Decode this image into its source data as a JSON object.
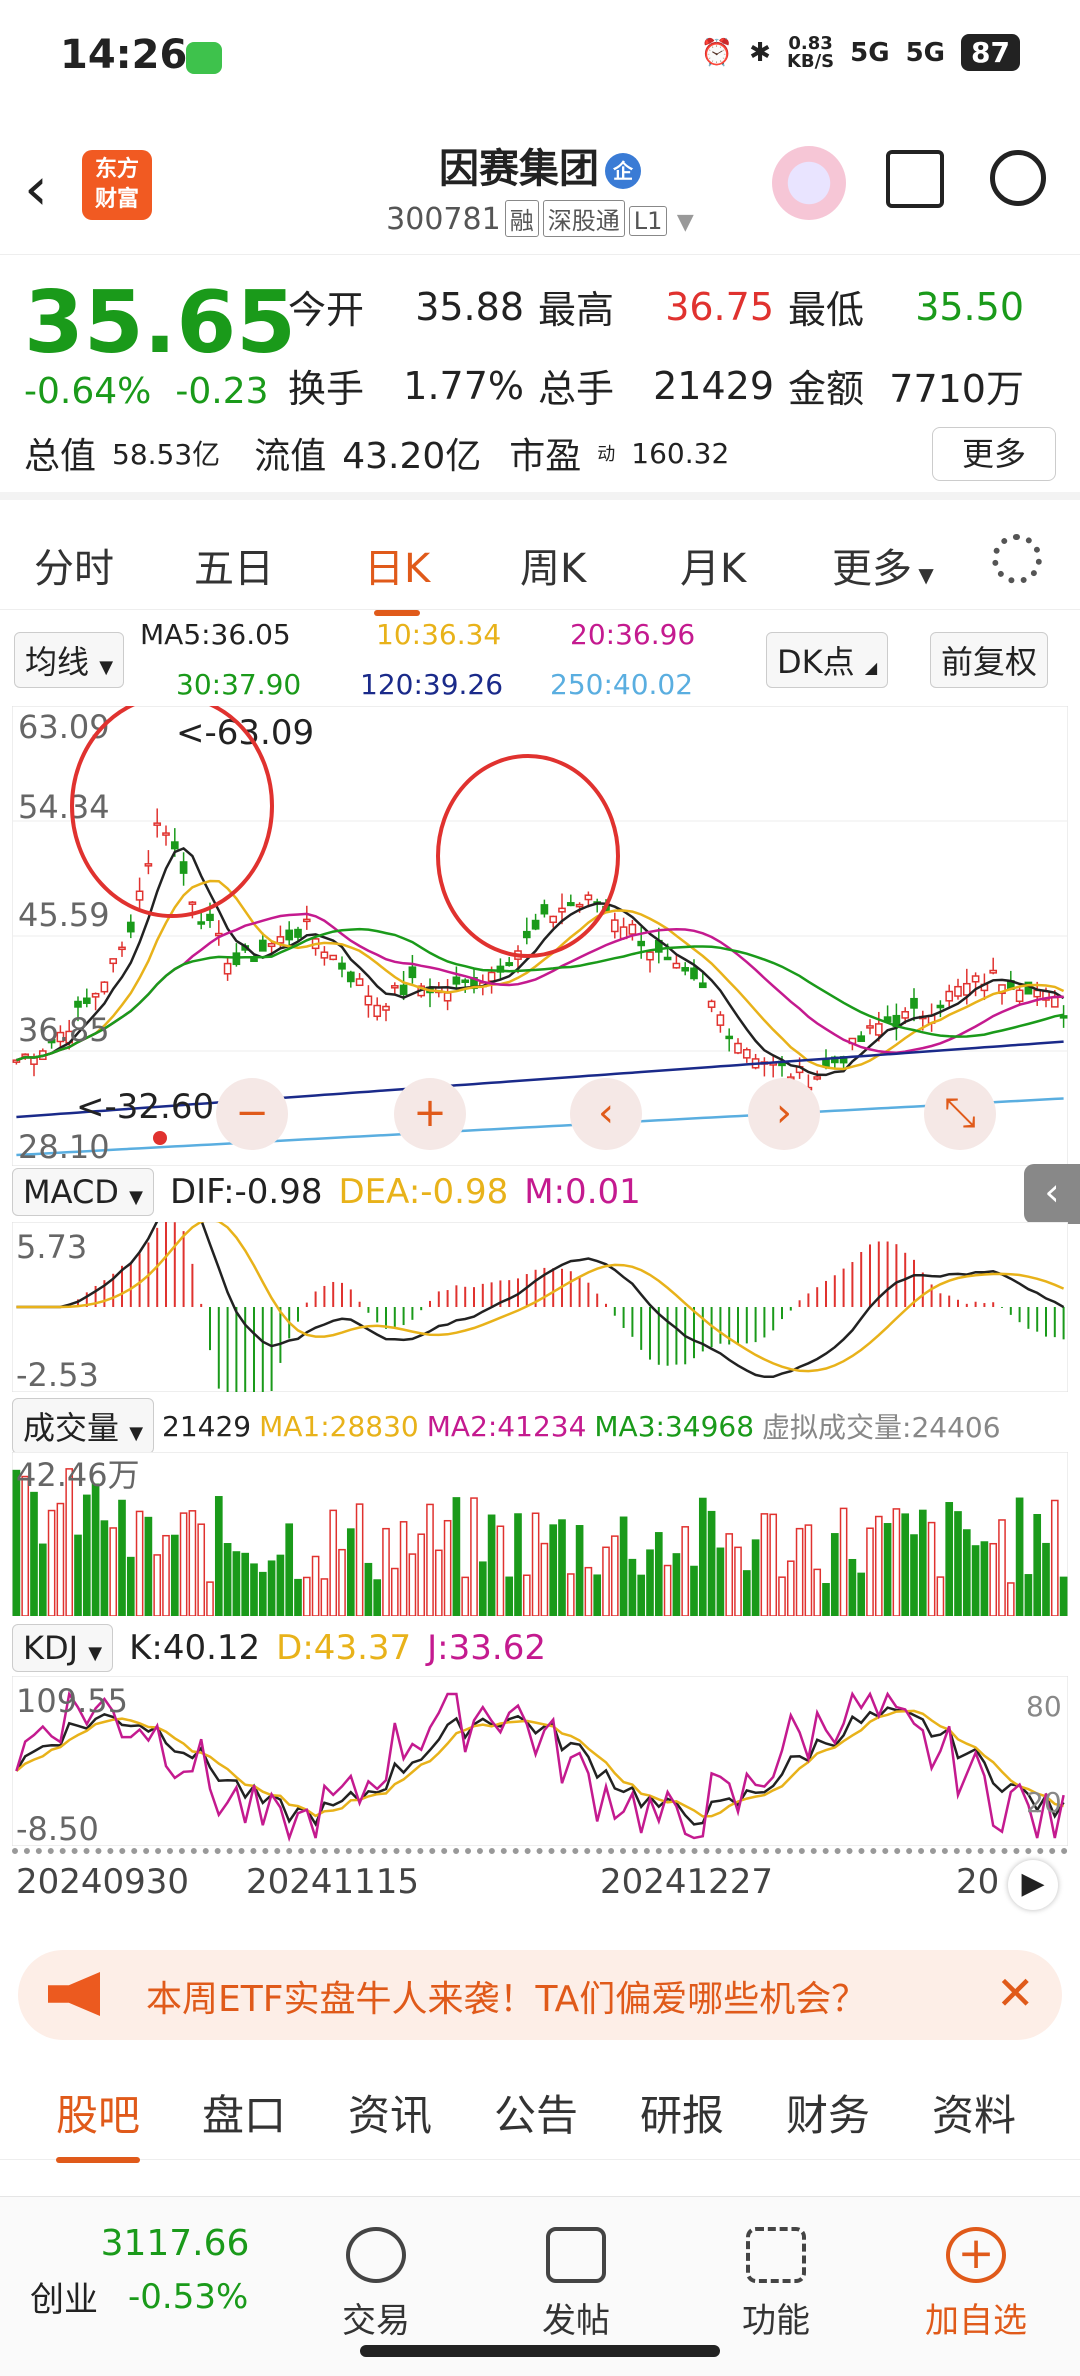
{
  "status_bar": {
    "time": "14:26",
    "net_speed_top": "0.83",
    "net_speed_unit": "KB/S",
    "signal1": "5G",
    "signal2": "5G",
    "battery": "87"
  },
  "header": {
    "logo_line1": "东方",
    "logo_line2": "财富",
    "stock_name": "因赛集团",
    "badge": "企",
    "stock_code": "300781",
    "tags": [
      "融",
      "深股通",
      "L1"
    ]
  },
  "quote": {
    "price": "35.65",
    "change_pct": "-0.64%",
    "change_amt": "-0.23",
    "fields": [
      {
        "label": "今开",
        "value": "35.88",
        "color": "#222222"
      },
      {
        "label": "最高",
        "value": "36.75",
        "color": "#e0322f"
      },
      {
        "label": "最低",
        "value": "35.50",
        "color": "#1a9a1a"
      },
      {
        "label": "换手",
        "value": "1.77%",
        "color": "#222222"
      },
      {
        "label": "总手",
        "value": "21429",
        "color": "#222222"
      },
      {
        "label": "金额",
        "value": "7710万",
        "color": "#222222"
      }
    ],
    "total_value_label": "总值",
    "total_value": "58.53亿",
    "float_value_label": "流值",
    "float_value": "43.20亿",
    "pe_label": "市盈",
    "pe_sup": "动",
    "pe_value": "160.32",
    "more": "更多"
  },
  "k_tabs": [
    "分时",
    "五日",
    "日K",
    "周K",
    "月K",
    "更多"
  ],
  "k_tabs_active": 2,
  "ma_bar": {
    "selector": "均线",
    "ma5": "MA5:36.05",
    "ma10": "10:36.34",
    "ma20": "20:36.96",
    "ma30": "30:37.90",
    "ma120": "120:39.26",
    "ma250": "250:40.02",
    "dk_button": "DK点",
    "adjust_button": "前复权"
  },
  "colors": {
    "up": "#e0322f",
    "down": "#1a9a1a",
    "ma5": "#222222",
    "ma10": "#e8b21a",
    "ma20": "#c41a8f",
    "ma30": "#1a9a1a",
    "ma120": "#1a2a8a",
    "ma250": "#5aaee0",
    "accent": "#e05a1a"
  },
  "k_axis": {
    "y_labels": [
      "63.09",
      "54.34",
      "45.59",
      "36.85",
      "28.10"
    ],
    "high_marker": "<-63.09",
    "low_marker": "<-32.60"
  },
  "macd": {
    "selector": "MACD",
    "dif": "DIF:-0.98",
    "dea": "DEA:-0.98",
    "m": "M:0.01",
    "y_top": "5.73",
    "y_bottom": "-2.53"
  },
  "volume": {
    "selector": "成交量",
    "cur": "21429",
    "ma1": "MA1:28830",
    "ma2": "MA2:41234",
    "ma3": "MA3:34968",
    "virtual": "虚拟成交量:24406",
    "y_top": "42.46万"
  },
  "kdj": {
    "selector": "KDJ",
    "k": "K:40.12",
    "d": "D:43.37",
    "j": "J:33.62",
    "y_top": "109.55",
    "y_bottom": "-8.50",
    "right_top": "80",
    "right_bottom": "20"
  },
  "dates": [
    "20240930",
    "20241115",
    "20241227",
    "20"
  ],
  "banner": {
    "text": "本周ETF实盘牛人来袭！TA们偏爱哪些机会？"
  },
  "bottom_tabs": [
    "股吧",
    "盘口",
    "资讯",
    "公告",
    "研报",
    "财务",
    "资料"
  ],
  "bottom_tabs_active": 0,
  "footer": {
    "index_value": "3117.66",
    "index_name": "创业",
    "index_change": "-0.53%",
    "nav": [
      "交易",
      "发帖",
      "功能",
      "加自选"
    ]
  }
}
